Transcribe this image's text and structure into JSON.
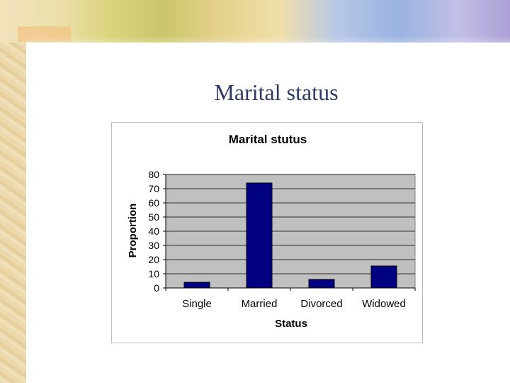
{
  "slide": {
    "title": "Marital status"
  },
  "chart_data": {
    "type": "bar",
    "title": "Marital stutus",
    "xlabel": "Status",
    "ylabel": "Proportion",
    "categories": [
      "Single",
      "Married",
      "Divorced",
      "Widowed"
    ],
    "values": [
      4,
      74,
      6,
      15.5
    ],
    "ylim": [
      0,
      80
    ],
    "yticks": [
      0,
      10,
      20,
      30,
      40,
      50,
      60,
      70,
      80
    ],
    "grid": true,
    "legend": "none",
    "colors": {
      "bar": "#000080",
      "plot_bg": "#c0c0c0",
      "grid": "#000000"
    }
  }
}
